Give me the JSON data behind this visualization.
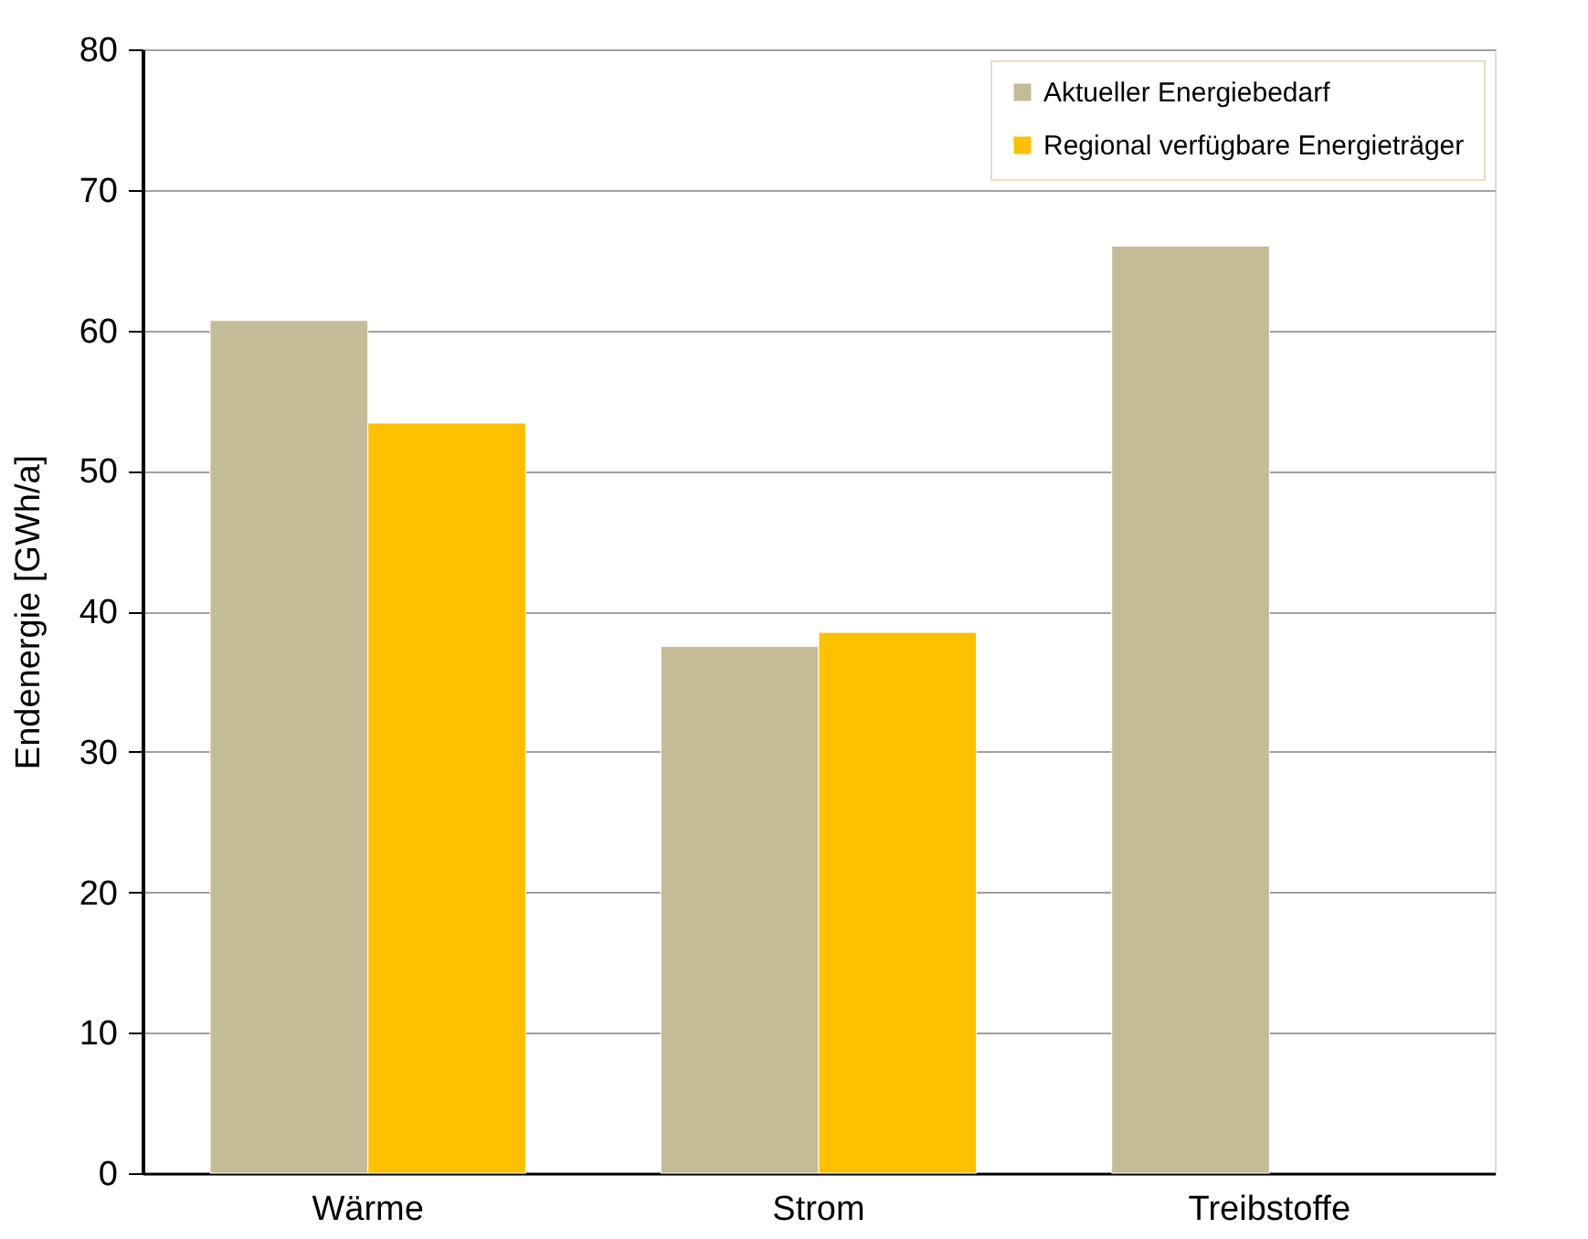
{
  "chart_data": {
    "type": "bar",
    "ylabel": "Endenergie [GWh/a]",
    "categories": [
      "Wärme",
      "Strom",
      "Treibstoffe"
    ],
    "series": [
      {
        "name": "Aktueller Energiebedarf",
        "color": "#c4bc96",
        "values": [
          60.7,
          37.5,
          66
        ]
      },
      {
        "name": "Regional verfügbare Energieträger",
        "color": "#ffc000",
        "values": [
          53.4,
          38.5,
          null
        ]
      }
    ],
    "ylim": [
      0,
      80
    ],
    "yticks": [
      0,
      10,
      20,
      30,
      40,
      50,
      60,
      70,
      80
    ],
    "grid": "y",
    "legend": "top right"
  }
}
